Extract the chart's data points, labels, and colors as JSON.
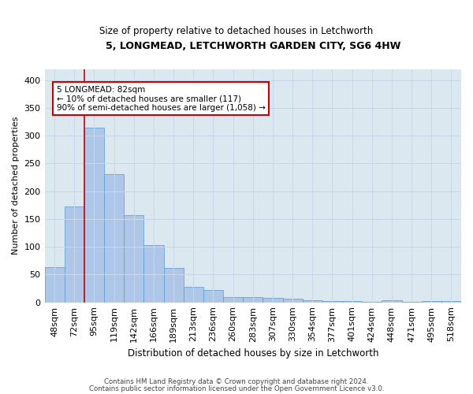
{
  "title1": "5, LONGMEAD, LETCHWORTH GARDEN CITY, SG6 4HW",
  "title2": "Size of property relative to detached houses in Letchworth",
  "xlabel": "Distribution of detached houses by size in Letchworth",
  "ylabel": "Number of detached properties",
  "categories": [
    "48sqm",
    "72sqm",
    "95sqm",
    "119sqm",
    "142sqm",
    "166sqm",
    "189sqm",
    "213sqm",
    "236sqm",
    "260sqm",
    "283sqm",
    "307sqm",
    "330sqm",
    "354sqm",
    "377sqm",
    "401sqm",
    "424sqm",
    "448sqm",
    "471sqm",
    "495sqm",
    "518sqm"
  ],
  "values": [
    63,
    172,
    315,
    230,
    157,
    103,
    62,
    28,
    22,
    9,
    10,
    8,
    6,
    4,
    3,
    2,
    1,
    4,
    1,
    2,
    2
  ],
  "bar_color": "#aec6e8",
  "bar_edge_color": "#5b9bd5",
  "vline_x": 1.5,
  "vline_color": "#cc0000",
  "annotation_text": "5 LONGMEAD: 82sqm\n← 10% of detached houses are smaller (117)\n90% of semi-detached houses are larger (1,058) →",
  "annotation_box_color": "#ffffff",
  "annotation_box_edge": "#cc0000",
  "ylim": [
    0,
    420
  ],
  "yticks": [
    0,
    50,
    100,
    150,
    200,
    250,
    300,
    350,
    400
  ],
  "grid_color": "#c8d8e8",
  "ax_bg_color": "#dce8f0",
  "background_color": "#ffffff",
  "footer1": "Contains HM Land Registry data © Crown copyright and database right 2024.",
  "footer2": "Contains public sector information licensed under the Open Government Licence v3.0."
}
